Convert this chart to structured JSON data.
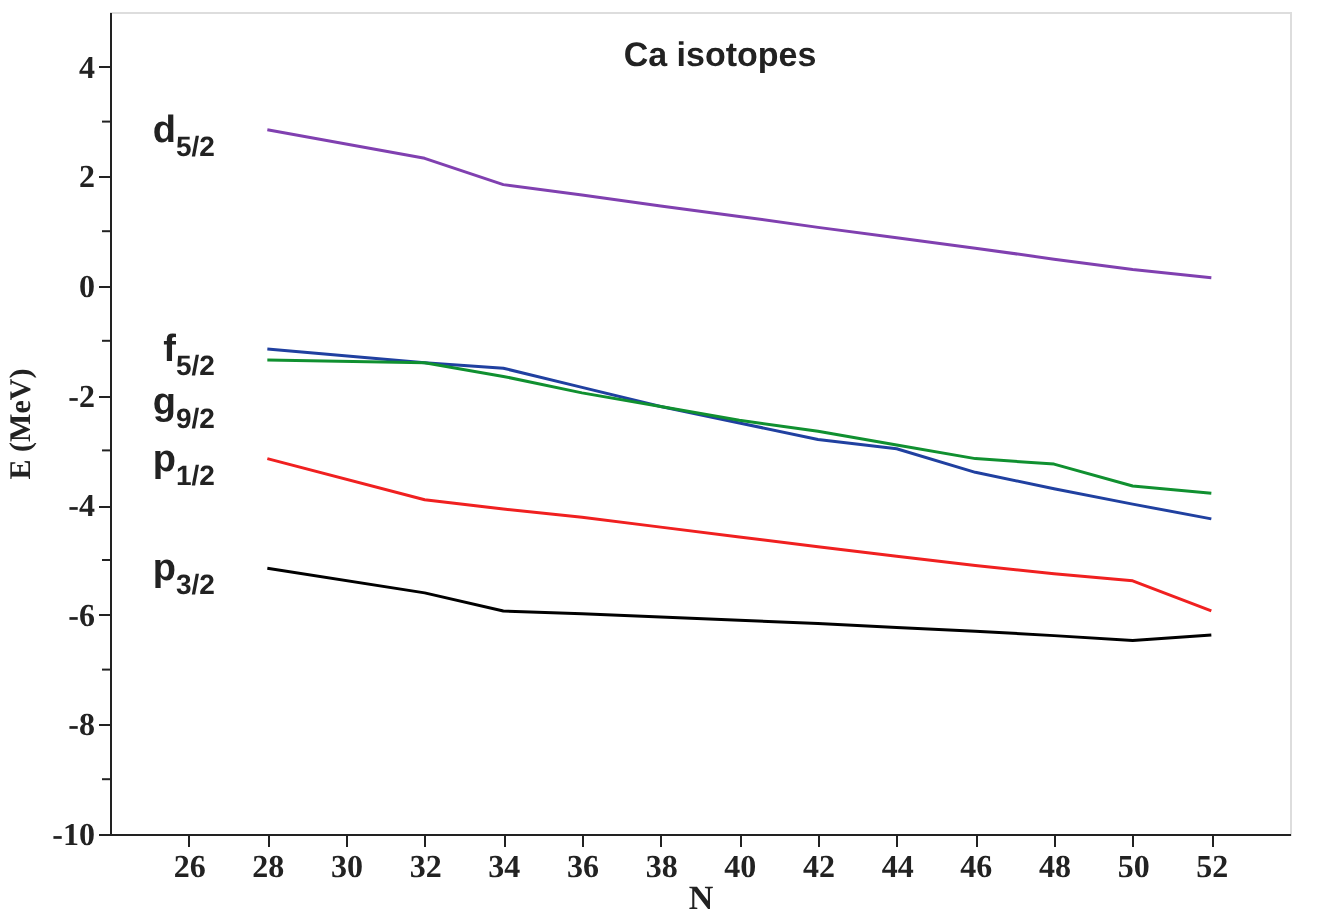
{
  "chart_data": {
    "type": "line",
    "title": "Ca isotopes",
    "xlabel": "N",
    "ylabel": "E (MeV)",
    "x": [
      28,
      32,
      34,
      36,
      38,
      40,
      42,
      44,
      46,
      48,
      50,
      52
    ],
    "series": [
      {
        "name": "d$_{5/2}$",
        "color": "#8040b0",
        "values": [
          2.85,
          2.33,
          1.85,
          1.66,
          1.46,
          1.27,
          1.07,
          0.88,
          0.69,
          0.49,
          0.3,
          0.15
        ]
      },
      {
        "name": "f$_{5/2}$",
        "color": "#2040a0",
        "values": [
          -1.15,
          -1.4,
          -1.5,
          -1.85,
          -2.2,
          -2.5,
          -2.8,
          -2.97,
          -3.4,
          -3.7,
          -3.98,
          -4.25
        ]
      },
      {
        "name": "g$_{9/2}$",
        "color": "#109030",
        "values": [
          -1.35,
          -1.4,
          -1.65,
          -1.95,
          -2.2,
          -2.45,
          -2.65,
          -2.9,
          -3.15,
          -3.25,
          -3.65,
          -3.78
        ]
      },
      {
        "name": "p$_{1/2}$",
        "color": "#f02020",
        "values": [
          -3.15,
          -3.9,
          -4.07,
          -4.22,
          -4.4,
          -4.58,
          -4.76,
          -4.93,
          -5.1,
          -5.25,
          -5.38,
          -5.93
        ]
      },
      {
        "name": "p$_{3/2}$",
        "color": "#000000",
        "values": [
          -5.15,
          -5.6,
          -5.93,
          -5.98,
          -6.04,
          -6.1,
          -6.16,
          -6.23,
          -6.3,
          -6.38,
          -6.47,
          -6.37
        ]
      }
    ],
    "xlim": [
      24,
      54
    ],
    "xticks": [
      26,
      28,
      30,
      32,
      34,
      36,
      38,
      40,
      42,
      44,
      46,
      48,
      50,
      52
    ],
    "ylim": [
      -10,
      5
    ],
    "yticks": [
      -10,
      {
        "value": -9,
        "label": null
      },
      -8,
      {
        "value": -7,
        "label": null
      },
      -6,
      {
        "value": -5,
        "label": null
      },
      -4,
      {
        "value": -3,
        "label": null
      },
      -2,
      {
        "value": -1,
        "label": null
      },
      0,
      {
        "value": 1,
        "label": null
      },
      2,
      {
        "value": 3,
        "label": null
      },
      4
    ],
    "grid": false,
    "marker": "none",
    "line_style": "solid"
  }
}
